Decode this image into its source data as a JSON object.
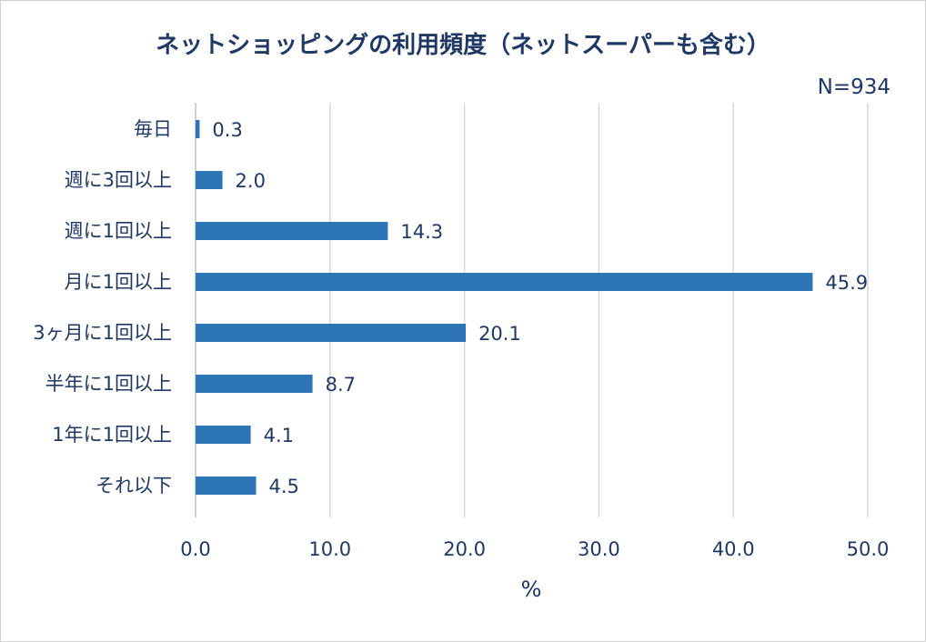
{
  "chart_data": {
    "type": "bar",
    "orientation": "horizontal",
    "title": "ネットショッピングの利用頻度（ネットスーパーも含む）",
    "sample_size": "N=934",
    "categories": [
      "毎日",
      "週に3回以上",
      "週に1回以上",
      "月に1回以上",
      "3ヶ月に1回以上",
      "半年に1回以上",
      "1年に1回以上",
      "それ以下"
    ],
    "values": [
      0.3,
      2.0,
      14.3,
      45.9,
      20.1,
      8.7,
      4.1,
      4.5
    ],
    "value_labels": [
      "0.3",
      "2.0",
      "14.3",
      "45.9",
      "20.1",
      "8.7",
      "4.1",
      "4.5"
    ],
    "xlabel": "%",
    "ylabel": "",
    "xlim": [
      0,
      50
    ],
    "xticks": [
      "0.0",
      "10.0",
      "20.0",
      "30.0",
      "40.0",
      "50.0"
    ],
    "grid": "vertical",
    "legend": "none",
    "bar_color": "#2e75b6",
    "grid_color": "#d9d9d9",
    "text_color": "#1f3864"
  }
}
